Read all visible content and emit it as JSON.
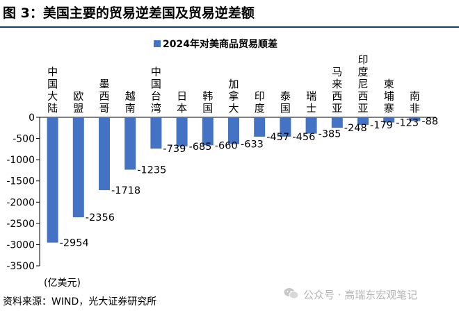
{
  "title": "图 3：美国主要的贸易逆差国及贸易逆差额",
  "source": "资料来源：WIND，光大证券研究所",
  "watermark": "公众号 · 高瑞东宏观笔记",
  "colors": {
    "bar": "#4472c4",
    "rule": "#1a3a6b",
    "watermark": "#b4b4b4"
  },
  "chart_data": {
    "type": "bar",
    "categories": [
      "中国大陆",
      "欧盟",
      "墨西哥",
      "越南",
      "中国台湾",
      "日本",
      "韩国",
      "加拿大",
      "印度",
      "泰国",
      "瑞士",
      "马来西亚",
      "印度尼西亚",
      "柬埔寨",
      "南非"
    ],
    "series": [
      {
        "name": "2024年对美商品贸易顺差",
        "values": [
          -2954,
          -2356,
          -1718,
          -1235,
          -739,
          -685,
          -660,
          -633,
          -457,
          -456,
          -385,
          -248,
          -179,
          -123,
          -88
        ]
      }
    ],
    "data_labels": [
      "-2954",
      "-2356",
      "-1718",
      "-1235",
      "-739",
      "-685",
      "-660",
      "-633",
      "-457",
      "-456",
      "-385",
      "-248",
      "-179",
      "-123",
      "-88"
    ],
    "yticks": [
      "0",
      "-500",
      "-1000",
      "-1500",
      "-2000",
      "-2500",
      "-3000",
      "-3500"
    ],
    "ylim": [
      -3500,
      0
    ],
    "ylabel": "(亿美元)",
    "legend_position": "top-center",
    "grid": false
  }
}
